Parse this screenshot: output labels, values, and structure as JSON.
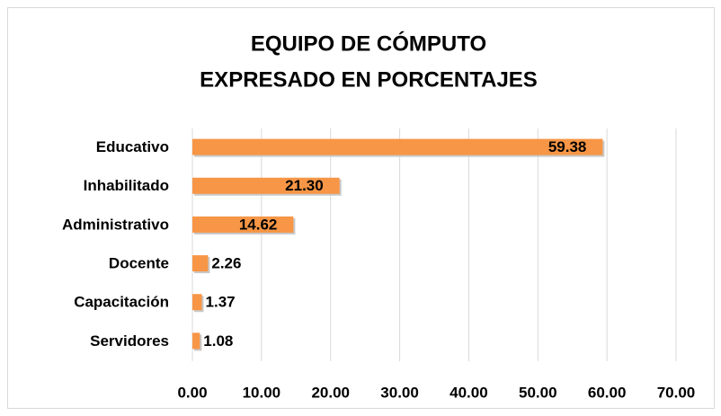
{
  "chart_data": {
    "type": "bar",
    "orientation": "horizontal",
    "title": [
      "EQUIPO DE CÓMPUTO",
      "EXPRESADO EN PORCENTAJES"
    ],
    "categories": [
      "Educativo",
      "Inhabilitado",
      "Administrativo",
      "Docente",
      "Capacitación",
      "Servidores"
    ],
    "values": [
      59.38,
      21.3,
      14.62,
      2.26,
      1.37,
      1.08
    ],
    "value_labels": [
      "59.38",
      "21.30",
      "14.62",
      "2.26",
      "1.37",
      "1.08"
    ],
    "color": "#f79646",
    "xlim": [
      0,
      70
    ],
    "xticks": [
      {
        "value": 0,
        "label": "0.00"
      },
      {
        "value": 10,
        "label": "10.00"
      },
      {
        "value": 20,
        "label": "20.00"
      },
      {
        "value": 30,
        "label": "30.00"
      },
      {
        "value": 40,
        "label": "40.00"
      },
      {
        "value": 50,
        "label": "50.00"
      },
      {
        "value": 60,
        "label": "60.00"
      },
      {
        "value": 70,
        "label": "70.00"
      }
    ],
    "grid": true
  }
}
